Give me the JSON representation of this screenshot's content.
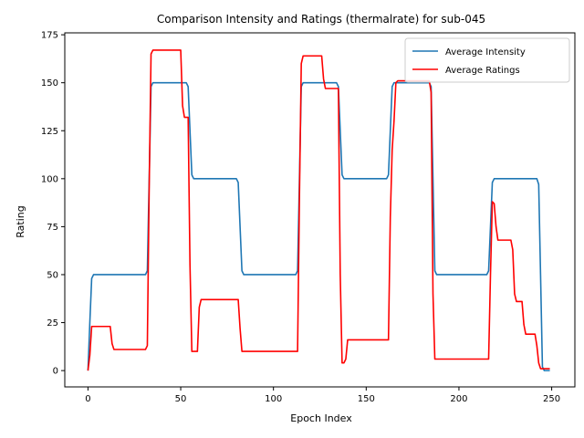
{
  "chart_data": {
    "type": "line",
    "title": "Comparison Intensity and Ratings (thermalrate) for sub-045",
    "xlabel": "Epoch Index",
    "ylabel": "Rating",
    "xlim": [
      -12.5,
      262.5
    ],
    "ylim": [
      -8.5,
      176
    ],
    "xticks": [
      0,
      50,
      100,
      150,
      200,
      250
    ],
    "yticks": [
      0,
      25,
      50,
      75,
      100,
      125,
      150,
      175
    ],
    "grid": false,
    "legend_position": "top-right",
    "series": [
      {
        "name": "Average Intensity",
        "color": "#1f77b4",
        "points": [
          [
            0,
            0
          ],
          [
            1,
            25
          ],
          [
            2,
            48
          ],
          [
            3,
            50
          ],
          [
            31,
            50
          ],
          [
            32,
            52
          ],
          [
            33,
            100
          ],
          [
            34,
            148
          ],
          [
            35,
            150
          ],
          [
            53,
            150
          ],
          [
            54,
            148
          ],
          [
            55,
            125
          ],
          [
            56,
            102
          ],
          [
            57,
            100
          ],
          [
            80,
            100
          ],
          [
            81,
            98
          ],
          [
            82,
            75
          ],
          [
            83,
            52
          ],
          [
            84,
            50
          ],
          [
            112,
            50
          ],
          [
            113,
            52
          ],
          [
            114,
            100
          ],
          [
            115,
            148
          ],
          [
            116,
            150
          ],
          [
            134,
            150
          ],
          [
            135,
            148
          ],
          [
            136,
            125
          ],
          [
            137,
            102
          ],
          [
            138,
            100
          ],
          [
            161,
            100
          ],
          [
            162,
            102
          ],
          [
            163,
            125
          ],
          [
            164,
            148
          ],
          [
            165,
            150
          ],
          [
            184,
            150
          ],
          [
            185,
            148
          ],
          [
            186,
            100
          ],
          [
            187,
            52
          ],
          [
            188,
            50
          ],
          [
            215,
            50
          ],
          [
            216,
            52
          ],
          [
            217,
            75
          ],
          [
            218,
            98
          ],
          [
            219,
            100
          ],
          [
            242,
            100
          ],
          [
            243,
            97
          ],
          [
            244,
            50
          ],
          [
            245,
            2
          ],
          [
            246,
            0
          ],
          [
            249,
            0
          ]
        ]
      },
      {
        "name": "Average Ratings",
        "color": "#ff0000",
        "points": [
          [
            0,
            0
          ],
          [
            1,
            8
          ],
          [
            2,
            23
          ],
          [
            12,
            23
          ],
          [
            13,
            14
          ],
          [
            14,
            11
          ],
          [
            31,
            11
          ],
          [
            32,
            13
          ],
          [
            33,
            95
          ],
          [
            34,
            165
          ],
          [
            35,
            167
          ],
          [
            50,
            167
          ],
          [
            51,
            138
          ],
          [
            52,
            132
          ],
          [
            54,
            132
          ],
          [
            55,
            55
          ],
          [
            56,
            10
          ],
          [
            59,
            10
          ],
          [
            60,
            33
          ],
          [
            61,
            37
          ],
          [
            81,
            37
          ],
          [
            82,
            22
          ],
          [
            83,
            10
          ],
          [
            113,
            10
          ],
          [
            114,
            90
          ],
          [
            115,
            160
          ],
          [
            116,
            164
          ],
          [
            126,
            164
          ],
          [
            127,
            152
          ],
          [
            128,
            147
          ],
          [
            135,
            147
          ],
          [
            136,
            50
          ],
          [
            137,
            4
          ],
          [
            138,
            4
          ],
          [
            139,
            6
          ],
          [
            140,
            16
          ],
          [
            162,
            16
          ],
          [
            163,
            80
          ],
          [
            164,
            115
          ],
          [
            165,
            130
          ],
          [
            166,
            150
          ],
          [
            167,
            151
          ],
          [
            184,
            151
          ],
          [
            185,
            145
          ],
          [
            186,
            40
          ],
          [
            187,
            6
          ],
          [
            216,
            6
          ],
          [
            217,
            50
          ],
          [
            218,
            88
          ],
          [
            219,
            87
          ],
          [
            220,
            75
          ],
          [
            221,
            68
          ],
          [
            228,
            68
          ],
          [
            229,
            63
          ],
          [
            230,
            40
          ],
          [
            231,
            36
          ],
          [
            234,
            36
          ],
          [
            235,
            24
          ],
          [
            236,
            19
          ],
          [
            241,
            19
          ],
          [
            242,
            13
          ],
          [
            243,
            4
          ],
          [
            244,
            1
          ],
          [
            249,
            1
          ]
        ]
      }
    ]
  }
}
